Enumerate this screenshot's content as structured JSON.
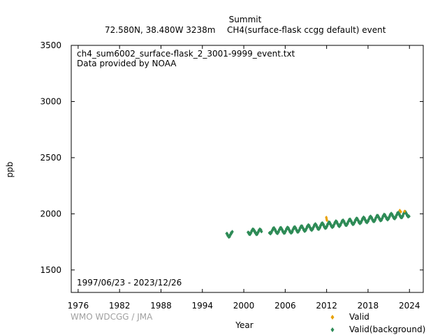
{
  "chart_data": {
    "type": "scatter",
    "title": "Summit",
    "subtitle_location": "72.580N, 38.480W 3238m",
    "subtitle_parameter": "CH4(surface-flask ccgg default) event",
    "file_name": "ch4_sum6002_surface-flask_2_3001-9999_event.txt",
    "provider": "Data provided by NOAA",
    "date_range": "1997/06/23 - 2023/12/26",
    "credit": "WMO WDCGG / JMA",
    "xlabel": "Year",
    "ylabel": "ppb",
    "xlim": [
      1975,
      2026
    ],
    "ylim": [
      1300,
      3500
    ],
    "x_ticks": [
      1976,
      1982,
      1988,
      1994,
      2000,
      2006,
      2012,
      2018,
      2024
    ],
    "y_ticks": [
      1500,
      2000,
      2500,
      3000,
      3500
    ],
    "legend_placement": "bottom-right",
    "series": [
      {
        "name": "Valid",
        "color": "#e8a000",
        "marker": "diamond",
        "points": [
          [
            2011.95,
            1968
          ],
          [
            2012.0,
            1955
          ],
          [
            2012.05,
            1942
          ],
          [
            2022.6,
            2030
          ],
          [
            2022.75,
            2018
          ],
          [
            2023.3,
            2022
          ]
        ]
      },
      {
        "name": "Valid(background)",
        "color": "#2e8b57",
        "marker": "diamond",
        "segments": [
          {
            "start": 1997.5,
            "end": 1998.4,
            "base": 1818,
            "trend": 0,
            "amp": 20
          },
          {
            "start": 2000.6,
            "end": 2002.6,
            "base": 1840,
            "trend": 0,
            "amp": 20
          },
          {
            "start": 2003.7,
            "end": 2007.0,
            "base": 1848,
            "trend": 2,
            "amp": 22
          },
          {
            "start": 2007.0,
            "end": 2024.0,
            "base": 1855,
            "trend": 8.5,
            "amp": 22
          }
        ]
      }
    ]
  }
}
